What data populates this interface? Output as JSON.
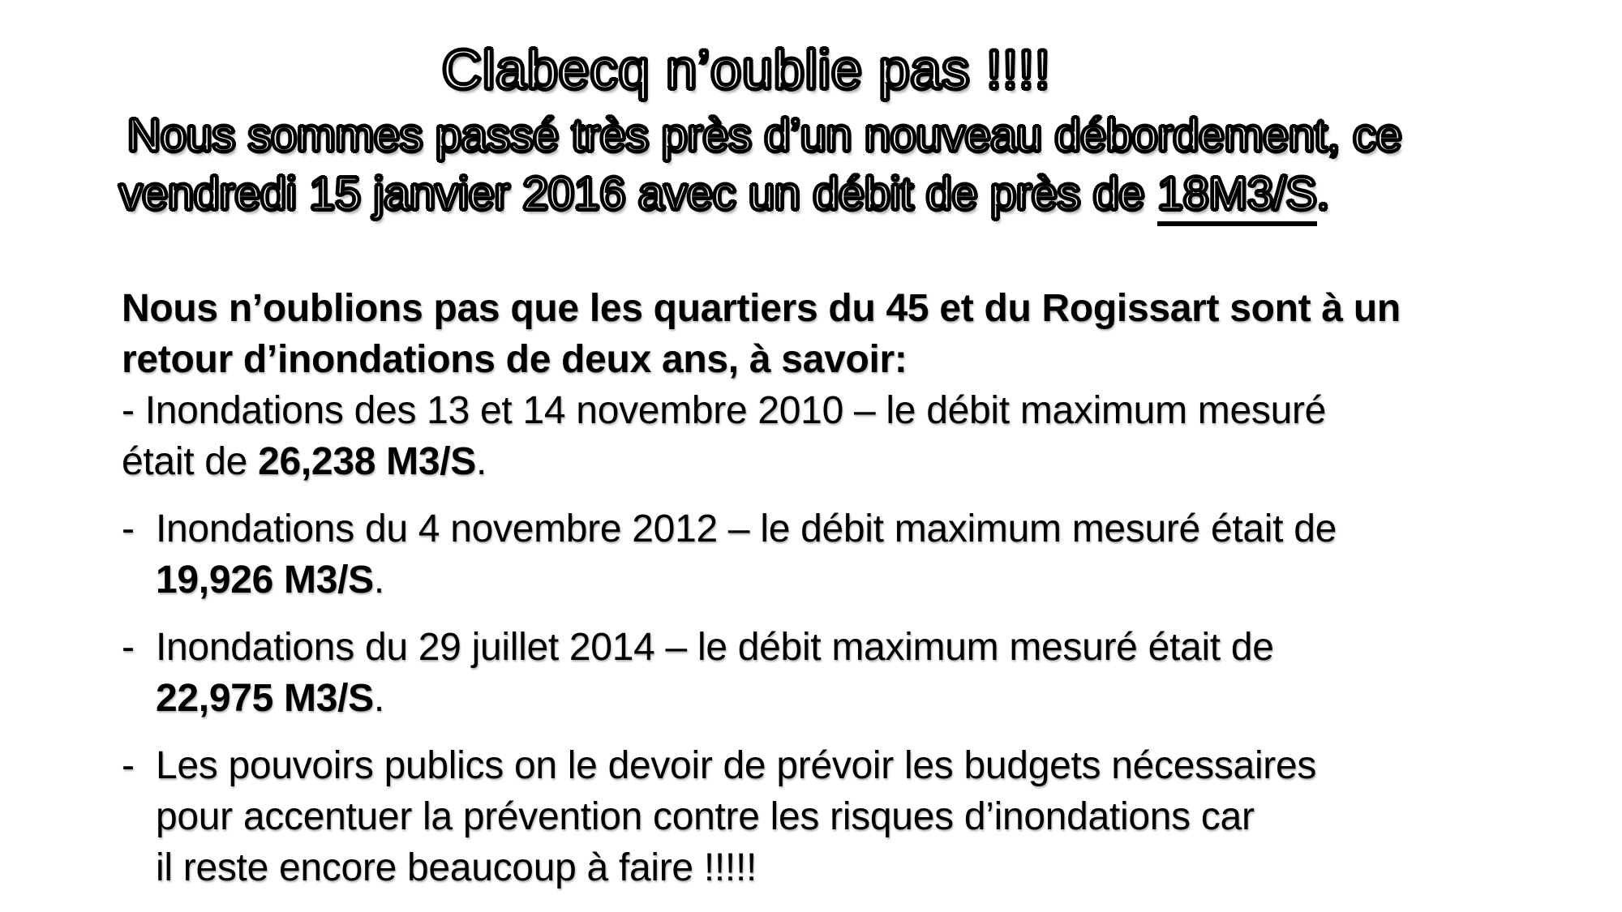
{
  "colors": {
    "background": "#ffffff",
    "text": "#000000"
  },
  "header": {
    "title": "Clabecq n’oublie pas !!!!",
    "line1": "Nous sommes passé très près d’un nouveau débordement, ce",
    "line2_prefix": "vendredi 15 janvier 2016 avec un débit de près de ",
    "line2_underlined": "18M3/S",
    "line2_suffix": "."
  },
  "body": {
    "intro_line1": "Nous n’oublions pas que les quartiers du 45 et du Rogissart sont à un",
    "intro_line2": "retour d’inondations de deux ans, à savoir:",
    "item1_line1": "- Inondations des 13 et 14 novembre 2010 – le débit maximum mesuré",
    "item1_line2_prefix": "était de ",
    "item1_value": "26,238 M3/S",
    "item1_dot": ".",
    "bullets": [
      {
        "marker": "-",
        "line1": "Inondations du 4 novembre 2012 – le débit maximum mesuré était de",
        "value": "19,926 M3/S",
        "dot": "."
      },
      {
        "marker": "-",
        "line1": "Inondations du 29 juillet 2014 – le débit maximum mesuré était de",
        "value": "22,975 M3/S",
        "dot": "."
      },
      {
        "marker": "-",
        "line1": "Les pouvoirs publics on le devoir de prévoir les budgets nécessaires",
        "line2": "pour accentuer la prévention contre les risques d’inondations car",
        "line3": "il reste encore beaucoup à faire !!!!!"
      }
    ]
  }
}
